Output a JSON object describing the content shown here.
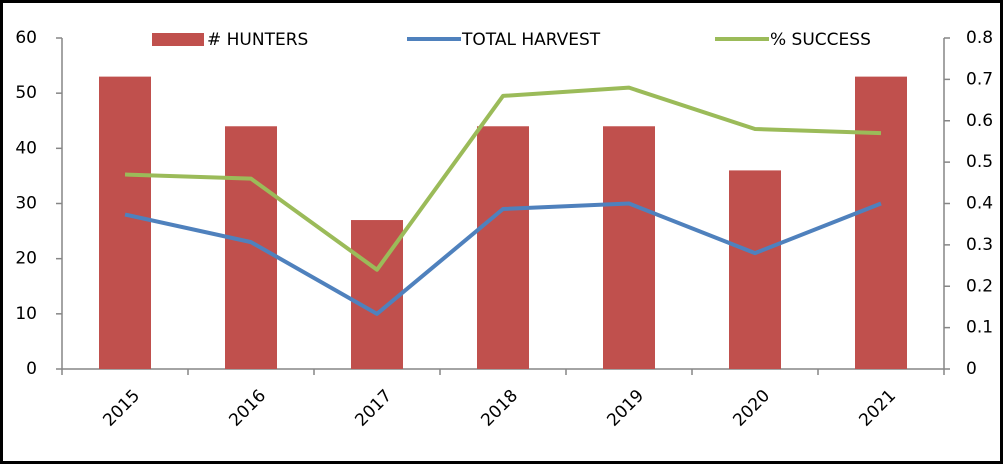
{
  "chart_data": {
    "type": "bar_line",
    "categories": [
      "2015",
      "2016",
      "2017",
      "2018",
      "2019",
      "2020",
      "2021"
    ],
    "series": [
      {
        "name": "# HUNTERS",
        "type": "bar",
        "color": "#c0504d",
        "values": [
          53,
          44,
          27,
          44,
          44,
          36,
          53
        ]
      },
      {
        "name": "TOTAL HARVEST",
        "type": "line",
        "color": "#4f81bd",
        "values": [
          28,
          23,
          10,
          29,
          30,
          21,
          30
        ]
      },
      {
        "name": "% SUCCESS",
        "type": "line",
        "axis": "y2",
        "color": "#9bbb59",
        "values": [
          0.47,
          0.46,
          0.24,
          0.66,
          0.68,
          0.58,
          0.57
        ]
      }
    ],
    "ylim": [
      0,
      60
    ],
    "yticks": [
      0,
      10,
      20,
      30,
      40,
      50,
      60
    ],
    "y2lim": [
      0,
      0.8
    ],
    "y2ticks": [
      0,
      0.1,
      0.2,
      0.3,
      0.4,
      0.5,
      0.6,
      0.7,
      0.8
    ],
    "legend": "top"
  }
}
